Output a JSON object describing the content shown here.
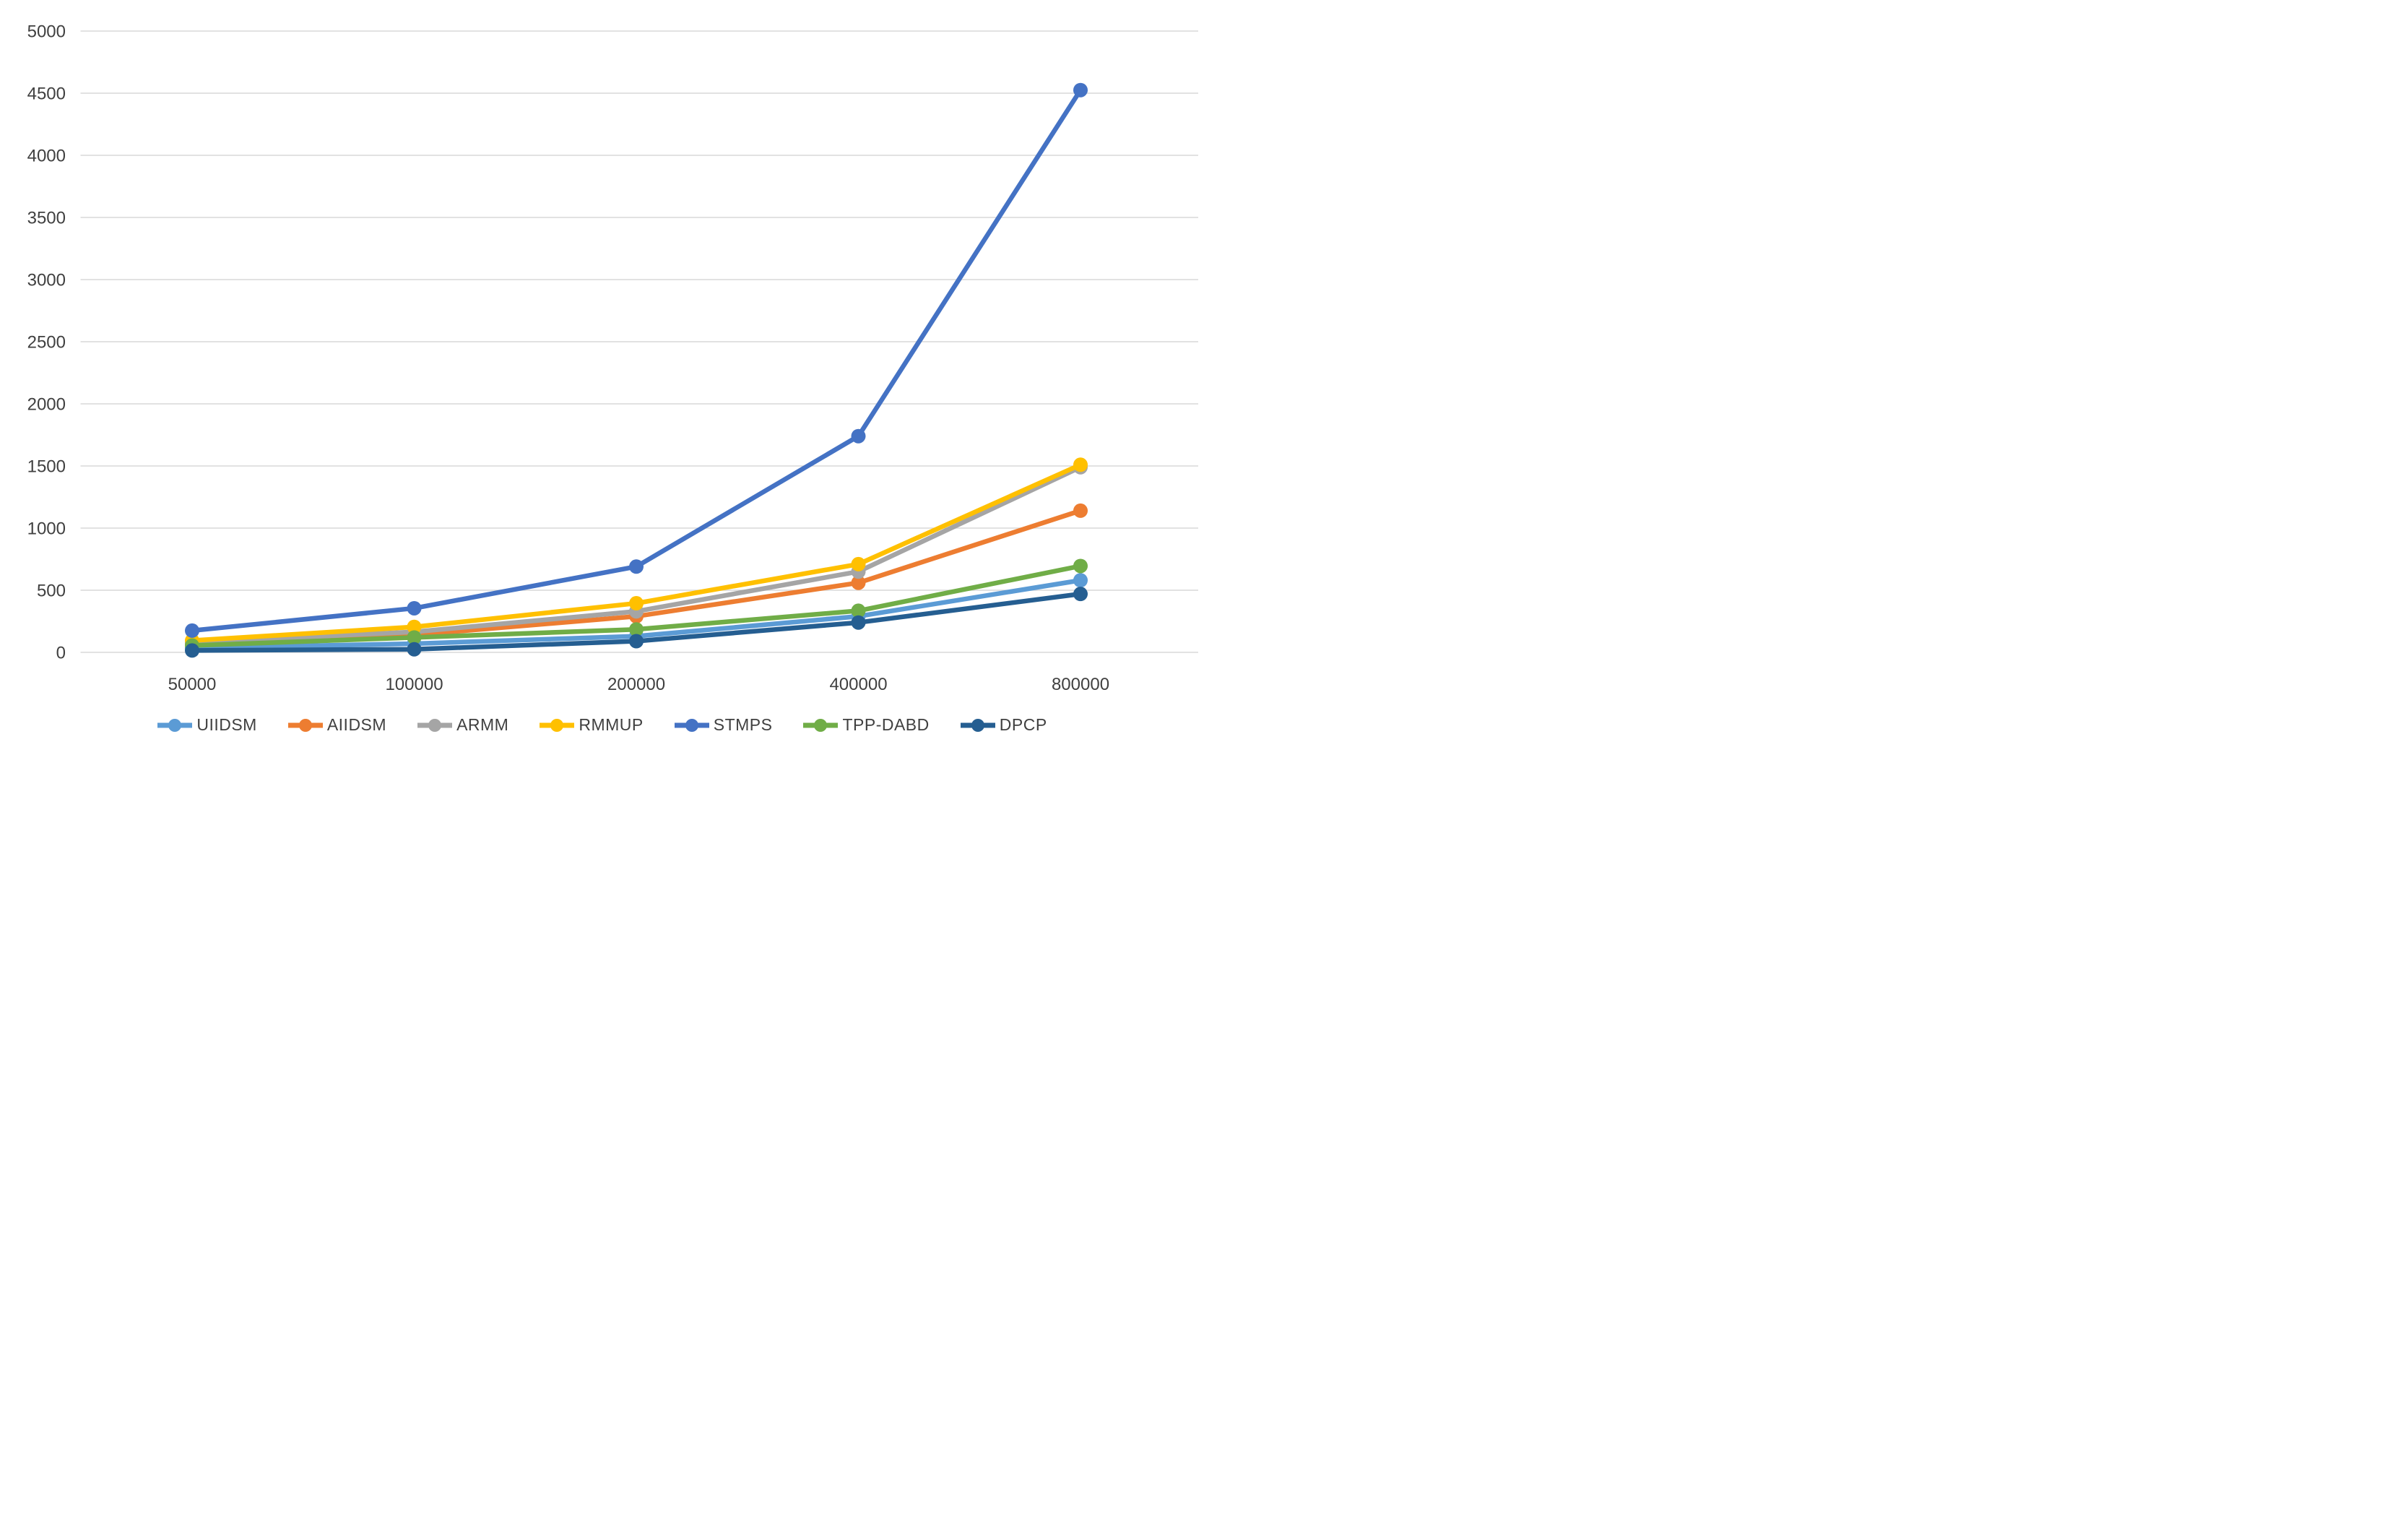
{
  "chart_data": {
    "type": "line",
    "title": "",
    "xlabel": "",
    "ylabel": "",
    "x_categories": [
      "50000",
      "100000",
      "200000",
      "400000",
      "800000"
    ],
    "series": [
      {
        "name": "UIIDSM",
        "color": "#5B9BD5",
        "values": [
          35,
          70,
          130,
          290,
          580
        ]
      },
      {
        "name": "AIIDSM",
        "color": "#ED7D31",
        "values": [
          70,
          140,
          290,
          560,
          1140
        ]
      },
      {
        "name": "ARMM",
        "color": "#A5A5A5",
        "values": [
          80,
          165,
          330,
          650,
          1490
        ]
      },
      {
        "name": "RMMUP",
        "color": "#FFC000",
        "values": [
          95,
          205,
          395,
          710,
          1510
        ]
      },
      {
        "name": "STMPS",
        "color": "#4472C4",
        "values": [
          175,
          355,
          690,
          1740,
          4525
        ]
      },
      {
        "name": "TPP-DABD",
        "color": "#70AD47",
        "values": [
          55,
          120,
          185,
          335,
          695
        ]
      },
      {
        "name": "DPCP",
        "color": "#255E91",
        "values": [
          15,
          25,
          90,
          240,
          470
        ]
      }
    ],
    "ylim": [
      0,
      5000
    ],
    "y_ticks": [
      0,
      500,
      1000,
      1500,
      2000,
      2500,
      3000,
      3500,
      4000,
      4500,
      5000
    ],
    "grid": true,
    "legend_position": "bottom",
    "marker": "circle"
  },
  "style": {
    "gridline_color": "#D9D9D9",
    "axis_text_color": "#404040",
    "background": "#FFFFFF"
  }
}
